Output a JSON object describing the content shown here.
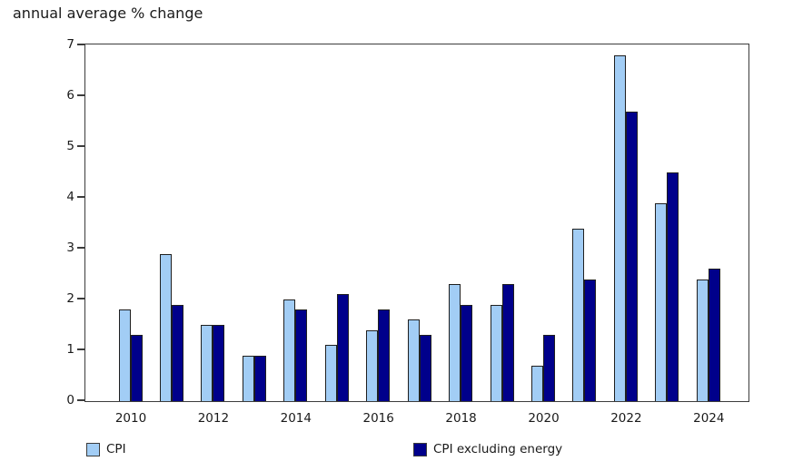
{
  "chart_data": {
    "type": "bar",
    "title": "annual average % change",
    "categories": [
      "2010",
      "2011",
      "2012",
      "2013",
      "2014",
      "2015",
      "2016",
      "2017",
      "2018",
      "2019",
      "2020",
      "2021",
      "2022",
      "2023",
      "2024"
    ],
    "series": [
      {
        "name": "CPI",
        "color": "#A2CDF5",
        "values": [
          1.8,
          2.9,
          1.5,
          0.9,
          2.0,
          1.1,
          1.4,
          1.6,
          2.3,
          1.9,
          0.7,
          3.4,
          6.8,
          3.9,
          2.4
        ]
      },
      {
        "name": "CPI excluding energy",
        "color": "#00008B",
        "values": [
          1.3,
          1.9,
          1.5,
          0.9,
          1.8,
          2.1,
          1.8,
          1.3,
          1.9,
          2.3,
          1.3,
          2.4,
          5.7,
          4.5,
          2.6
        ]
      }
    ],
    "xlabel": "",
    "ylabel": "",
    "ylim": [
      0,
      7
    ],
    "yticks": [
      0,
      1,
      2,
      3,
      4,
      5,
      6,
      7
    ],
    "xtick_labels": [
      "2010",
      "2012",
      "2014",
      "2016",
      "2018",
      "2020",
      "2022",
      "2024"
    ],
    "grid": false,
    "legend_position": "bottom",
    "bar_border_color": "#1f1f1f"
  }
}
